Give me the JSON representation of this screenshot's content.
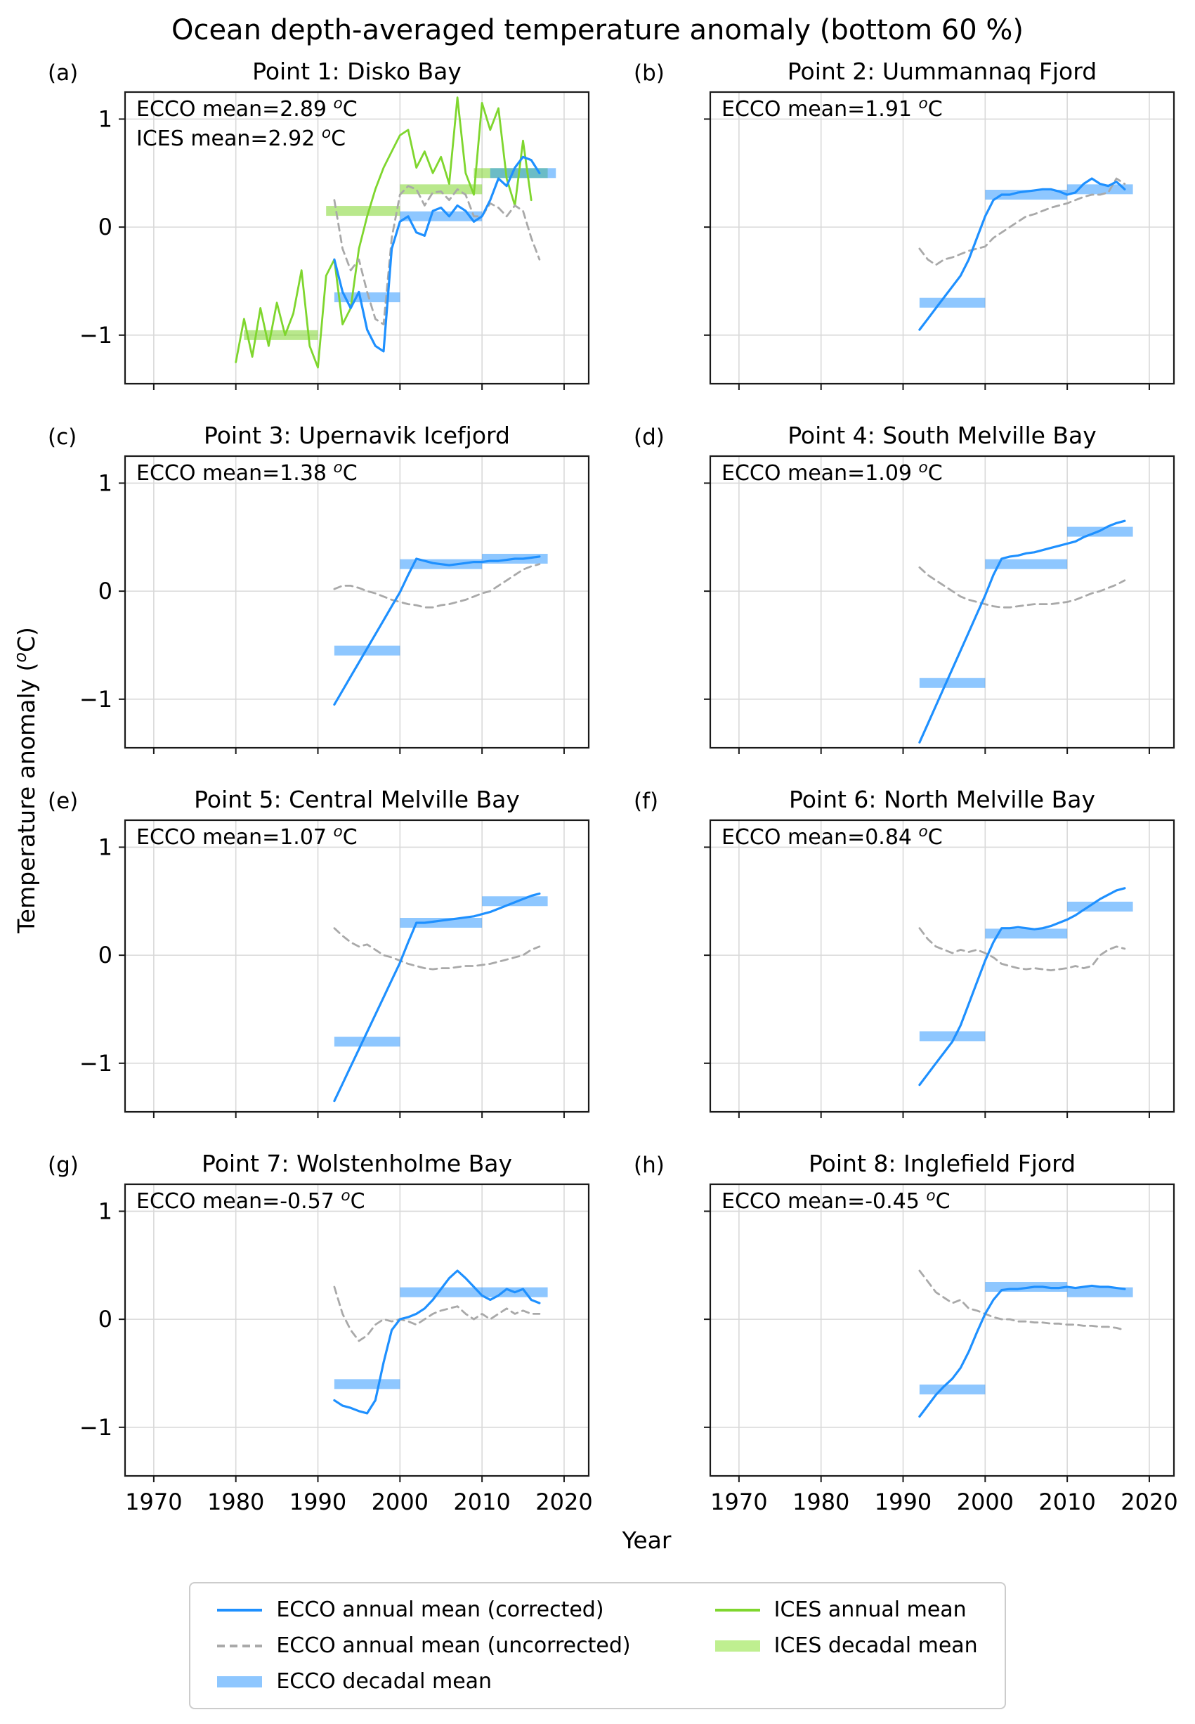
{
  "figure_title": "Ocean depth-averaged temperature anomaly (bottom 60 %)",
  "x_axis_label": "Year",
  "y_axis_label": "Temperature anomaly (°C)",
  "style": {
    "ecco_blue": "#1E90FF",
    "ecco_band": "rgba(30,144,255,0.5)",
    "ices_green": "#7fd62e",
    "ices_band": "rgba(138,226,52,0.55)",
    "gray_dashed": "#a9a9a9",
    "grid": "#d9d9d9",
    "spine": "#1a1a1a"
  },
  "axes": {
    "x_range": [
      1966.5,
      2023
    ],
    "y_range": [
      -1.45,
      1.25
    ],
    "x_ticks": [
      1970,
      1980,
      1990,
      2000,
      2010,
      2020
    ],
    "x_tick_labels": [
      "1970",
      "1980",
      "1990",
      "2000",
      "2010",
      "2020"
    ],
    "y_ticks": [
      -1,
      0,
      1
    ],
    "y_tick_labels": [
      "−1",
      "0",
      "1"
    ],
    "grid": true
  },
  "legend": {
    "items": [
      {
        "label": "ECCO annual mean (corrected)",
        "swatch": "line-blue"
      },
      {
        "label": "ECCO annual mean (uncorrected)",
        "swatch": "line-gray-dashed"
      },
      {
        "label": "ECCO decadal mean",
        "swatch": "band-blue"
      },
      {
        "label": "ICES annual mean",
        "swatch": "line-green"
      },
      {
        "label": "ICES decadal mean",
        "swatch": "band-green"
      }
    ]
  },
  "years": {
    "ecco": [
      1992,
      1993,
      1994,
      1995,
      1996,
      1997,
      1998,
      1999,
      2000,
      2001,
      2002,
      2003,
      2004,
      2005,
      2006,
      2007,
      2008,
      2009,
      2010,
      2011,
      2012,
      2013,
      2014,
      2015,
      2016,
      2017
    ],
    "ices_point1": [
      1980,
      1981,
      1982,
      1983,
      1984,
      1985,
      1986,
      1987,
      1988,
      1989,
      1990,
      1991,
      1992,
      1993,
      1994,
      1995,
      1996,
      1997,
      1998,
      1999,
      2000,
      2001,
      2002,
      2003,
      2004,
      2005,
      2006,
      2007,
      2008,
      2009,
      2010,
      2011,
      2012,
      2013,
      2014,
      2015,
      2016
    ]
  },
  "chart_data": [
    {
      "tag": "(a)",
      "title": "Point 1: Disko Bay",
      "type": "line",
      "annotations": [
        "ECCO mean=2.89 °C",
        "ICES mean=2.92 °C"
      ],
      "series": [
        {
          "name": "ices_annual",
          "x_key": "ices_point1",
          "y": [
            -1.25,
            -0.85,
            -1.2,
            -0.75,
            -1.1,
            -0.7,
            -1.0,
            -0.8,
            -0.4,
            -1.1,
            -1.3,
            -0.45,
            -0.3,
            -0.9,
            -0.75,
            -0.2,
            0.1,
            0.35,
            0.55,
            0.7,
            0.85,
            0.9,
            0.55,
            0.7,
            0.5,
            0.65,
            0.4,
            1.2,
            0.5,
            0.3,
            1.15,
            0.9,
            1.1,
            0.45,
            0.2,
            0.8,
            0.25
          ]
        },
        {
          "name": "ecco_uncorrected",
          "x_key": "ecco",
          "y": [
            0.25,
            -0.2,
            -0.4,
            -0.3,
            -0.6,
            -0.85,
            -0.9,
            -0.1,
            0.3,
            0.38,
            0.35,
            0.2,
            0.32,
            0.33,
            0.25,
            0.35,
            0.3,
            0.1,
            0.1,
            0.22,
            0.18,
            0.1,
            0.2,
            0.15,
            -0.1,
            -0.3
          ]
        },
        {
          "name": "ecco_corrected",
          "x_key": "ecco",
          "y": [
            -0.3,
            -0.6,
            -0.75,
            -0.6,
            -0.95,
            -1.1,
            -1.15,
            -0.2,
            0.05,
            0.1,
            -0.05,
            -0.08,
            0.15,
            0.18,
            0.1,
            0.2,
            0.15,
            0.05,
            0.1,
            0.25,
            0.45,
            0.38,
            0.55,
            0.65,
            0.62,
            0.5
          ]
        }
      ],
      "decadal_means": {
        "ices": [
          [
            1981,
            1990,
            -1.0
          ],
          [
            1991,
            2000,
            0.15
          ],
          [
            2000,
            2010,
            0.35
          ],
          [
            2009,
            2018,
            0.5
          ]
        ],
        "ecco": [
          [
            1992,
            2000,
            -0.65
          ],
          [
            2000,
            2010,
            0.1
          ],
          [
            2011,
            2019,
            0.5
          ]
        ]
      }
    },
    {
      "tag": "(b)",
      "title": "Point 2: Uummannaq Fjord",
      "type": "line",
      "annotations": [
        "ECCO mean=1.91 °C"
      ],
      "series": [
        {
          "name": "ecco_uncorrected",
          "x_key": "ecco",
          "y": [
            -0.2,
            -0.3,
            -0.35,
            -0.3,
            -0.28,
            -0.25,
            -0.22,
            -0.2,
            -0.18,
            -0.1,
            -0.05,
            0.0,
            0.05,
            0.1,
            0.12,
            0.15,
            0.18,
            0.2,
            0.22,
            0.25,
            0.28,
            0.3,
            0.3,
            0.32,
            0.45,
            0.4
          ]
        },
        {
          "name": "ecco_corrected",
          "x_key": "ecco",
          "y": [
            -0.95,
            -0.85,
            -0.75,
            -0.65,
            -0.55,
            -0.45,
            -0.3,
            -0.1,
            0.1,
            0.25,
            0.3,
            0.3,
            0.32,
            0.33,
            0.34,
            0.35,
            0.35,
            0.33,
            0.3,
            0.32,
            0.4,
            0.45,
            0.4,
            0.38,
            0.42,
            0.35
          ]
        }
      ],
      "decadal_means": {
        "ecco": [
          [
            1992,
            2000,
            -0.7
          ],
          [
            2000,
            2010,
            0.3
          ],
          [
            2010,
            2018,
            0.35
          ]
        ]
      }
    },
    {
      "tag": "(c)",
      "title": "Point 3: Upernavik Icefjord",
      "type": "line",
      "annotations": [
        "ECCO mean=1.38 °C"
      ],
      "series": [
        {
          "name": "ecco_uncorrected",
          "x_key": "ecco",
          "y": [
            0.02,
            0.05,
            0.05,
            0.03,
            0.0,
            -0.02,
            -0.05,
            -0.08,
            -0.1,
            -0.12,
            -0.13,
            -0.15,
            -0.15,
            -0.13,
            -0.12,
            -0.1,
            -0.08,
            -0.05,
            -0.02,
            0.0,
            0.05,
            0.1,
            0.15,
            0.2,
            0.23,
            0.25
          ]
        },
        {
          "name": "ecco_corrected",
          "x_key": "ecco",
          "y": [
            -1.05,
            -0.92,
            -0.79,
            -0.66,
            -0.53,
            -0.4,
            -0.27,
            -0.14,
            -0.01,
            0.15,
            0.3,
            0.28,
            0.26,
            0.25,
            0.24,
            0.25,
            0.26,
            0.27,
            0.27,
            0.28,
            0.28,
            0.29,
            0.3,
            0.3,
            0.31,
            0.32
          ]
        }
      ],
      "decadal_means": {
        "ecco": [
          [
            1992,
            2000,
            -0.55
          ],
          [
            2000,
            2010,
            0.25
          ],
          [
            2010,
            2018,
            0.3
          ]
        ]
      }
    },
    {
      "tag": "(d)",
      "title": "Point 4: South Melville Bay",
      "type": "line",
      "annotations": [
        "ECCO mean=1.09 °C"
      ],
      "series": [
        {
          "name": "ecco_uncorrected",
          "x_key": "ecco",
          "y": [
            0.22,
            0.15,
            0.1,
            0.05,
            0.0,
            -0.05,
            -0.08,
            -0.1,
            -0.12,
            -0.14,
            -0.15,
            -0.15,
            -0.14,
            -0.13,
            -0.12,
            -0.12,
            -0.12,
            -0.11,
            -0.1,
            -0.08,
            -0.05,
            -0.02,
            0.0,
            0.03,
            0.06,
            0.1
          ]
        },
        {
          "name": "ecco_corrected",
          "x_key": "ecco",
          "y": [
            -1.4,
            -1.23,
            -1.06,
            -0.89,
            -0.72,
            -0.55,
            -0.38,
            -0.21,
            -0.04,
            0.15,
            0.3,
            0.32,
            0.33,
            0.35,
            0.36,
            0.38,
            0.4,
            0.42,
            0.44,
            0.46,
            0.5,
            0.53,
            0.56,
            0.6,
            0.63,
            0.65
          ]
        }
      ],
      "decadal_means": {
        "ecco": [
          [
            1992,
            2000,
            -0.85
          ],
          [
            2000,
            2010,
            0.25
          ],
          [
            2010,
            2018,
            0.55
          ]
        ]
      }
    },
    {
      "tag": "(e)",
      "title": "Point 5: Central Melville Bay",
      "type": "line",
      "annotations": [
        "ECCO mean=1.07 °C"
      ],
      "series": [
        {
          "name": "ecco_uncorrected",
          "x_key": "ecco",
          "y": [
            0.25,
            0.18,
            0.12,
            0.08,
            0.1,
            0.05,
            0.0,
            -0.02,
            -0.05,
            -0.08,
            -0.1,
            -0.12,
            -0.13,
            -0.12,
            -0.12,
            -0.11,
            -0.1,
            -0.1,
            -0.09,
            -0.08,
            -0.06,
            -0.04,
            -0.02,
            0.0,
            0.05,
            0.08
          ]
        },
        {
          "name": "ecco_corrected",
          "x_key": "ecco",
          "y": [
            -1.35,
            -1.19,
            -1.03,
            -0.87,
            -0.71,
            -0.55,
            -0.39,
            -0.23,
            -0.07,
            0.12,
            0.3,
            0.3,
            0.31,
            0.32,
            0.33,
            0.34,
            0.35,
            0.36,
            0.38,
            0.4,
            0.43,
            0.46,
            0.49,
            0.52,
            0.55,
            0.57
          ]
        }
      ],
      "decadal_means": {
        "ecco": [
          [
            1992,
            2000,
            -0.8
          ],
          [
            2000,
            2010,
            0.3
          ],
          [
            2010,
            2018,
            0.5
          ]
        ]
      }
    },
    {
      "tag": "(f)",
      "title": "Point 6: North Melville Bay",
      "type": "line",
      "annotations": [
        "ECCO mean=0.84 °C"
      ],
      "series": [
        {
          "name": "ecco_uncorrected",
          "x_key": "ecco",
          "y": [
            0.25,
            0.15,
            0.08,
            0.05,
            0.02,
            0.05,
            0.03,
            0.05,
            0.02,
            -0.02,
            -0.08,
            -0.1,
            -0.12,
            -0.13,
            -0.12,
            -0.13,
            -0.14,
            -0.13,
            -0.12,
            -0.1,
            -0.12,
            -0.1,
            0.0,
            0.05,
            0.08,
            0.06
          ]
        },
        {
          "name": "ecco_corrected",
          "x_key": "ecco",
          "y": [
            -1.2,
            -1.1,
            -1.0,
            -0.9,
            -0.8,
            -0.65,
            -0.45,
            -0.25,
            -0.05,
            0.12,
            0.25,
            0.25,
            0.26,
            0.25,
            0.24,
            0.25,
            0.27,
            0.3,
            0.33,
            0.37,
            0.42,
            0.47,
            0.52,
            0.56,
            0.6,
            0.62
          ]
        }
      ],
      "decadal_means": {
        "ecco": [
          [
            1992,
            2000,
            -0.75
          ],
          [
            2000,
            2010,
            0.2
          ],
          [
            2010,
            2018,
            0.45
          ]
        ]
      }
    },
    {
      "tag": "(g)",
      "title": "Point 7: Wolstenholme Bay",
      "type": "line",
      "annotations": [
        "ECCO mean=-0.57 °C"
      ],
      "series": [
        {
          "name": "ecco_uncorrected",
          "x_key": "ecco",
          "y": [
            0.3,
            0.05,
            -0.1,
            -0.2,
            -0.15,
            -0.05,
            0.0,
            -0.02,
            0.0,
            -0.02,
            -0.05,
            0.0,
            0.05,
            0.08,
            0.1,
            0.12,
            0.05,
            0.0,
            0.05,
            0.0,
            0.05,
            0.1,
            0.05,
            0.08,
            0.05,
            0.05
          ]
        },
        {
          "name": "ecco_corrected",
          "x_key": "ecco",
          "y": [
            -0.75,
            -0.8,
            -0.82,
            -0.85,
            -0.87,
            -0.75,
            -0.4,
            -0.1,
            0.0,
            0.02,
            0.05,
            0.1,
            0.18,
            0.28,
            0.38,
            0.45,
            0.38,
            0.3,
            0.22,
            0.18,
            0.22,
            0.28,
            0.25,
            0.28,
            0.18,
            0.15
          ]
        }
      ],
      "decadal_means": {
        "ecco": [
          [
            1992,
            2000,
            -0.6
          ],
          [
            2000,
            2010,
            0.25
          ],
          [
            2010,
            2018,
            0.25
          ]
        ]
      }
    },
    {
      "tag": "(h)",
      "title": "Point 8: Inglefield Fjord",
      "type": "line",
      "annotations": [
        "ECCO mean=-0.45 °C"
      ],
      "series": [
        {
          "name": "ecco_uncorrected",
          "x_key": "ecco",
          "y": [
            0.45,
            0.35,
            0.25,
            0.2,
            0.15,
            0.18,
            0.1,
            0.08,
            0.05,
            0.02,
            0.0,
            0.0,
            -0.02,
            -0.02,
            -0.03,
            -0.03,
            -0.04,
            -0.04,
            -0.05,
            -0.05,
            -0.06,
            -0.06,
            -0.07,
            -0.07,
            -0.08,
            -0.1
          ]
        },
        {
          "name": "ecco_corrected",
          "x_key": "ecco",
          "y": [
            -0.9,
            -0.8,
            -0.7,
            -0.62,
            -0.55,
            -0.45,
            -0.3,
            -0.12,
            0.05,
            0.18,
            0.27,
            0.28,
            0.28,
            0.29,
            0.3,
            0.3,
            0.29,
            0.29,
            0.3,
            0.29,
            0.3,
            0.31,
            0.3,
            0.3,
            0.29,
            0.28
          ]
        }
      ],
      "decadal_means": {
        "ecco": [
          [
            1992,
            2000,
            -0.65
          ],
          [
            2000,
            2010,
            0.3
          ],
          [
            2010,
            2018,
            0.25
          ]
        ]
      }
    }
  ]
}
